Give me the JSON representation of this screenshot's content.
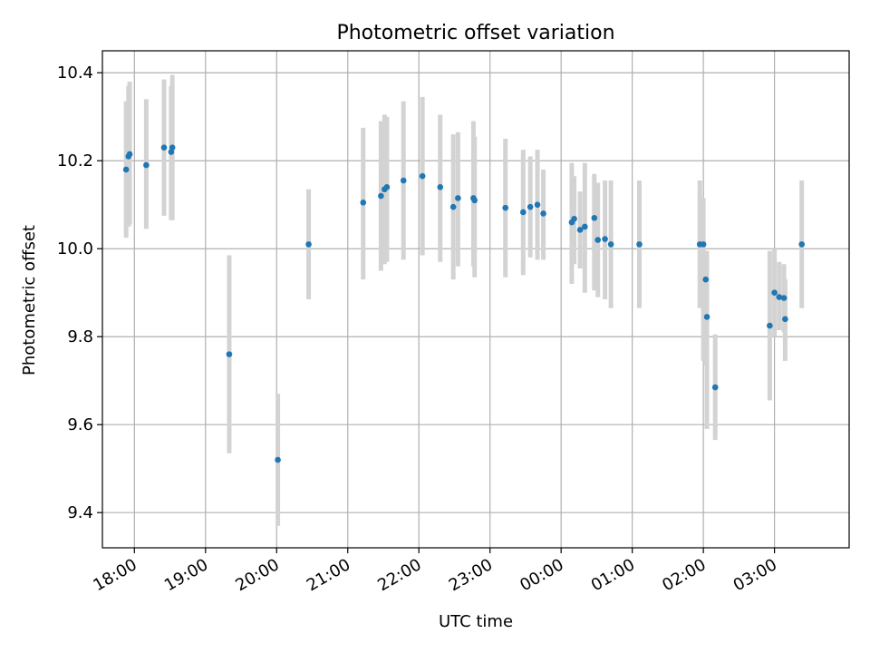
{
  "chart_data": {
    "type": "scatter",
    "title": "Photometric offset variation",
    "xlabel": "UTC time",
    "ylabel": "Photometric offset",
    "x_tick_labels": [
      "18:00",
      "19:00",
      "20:00",
      "21:00",
      "22:00",
      "23:00",
      "00:00",
      "01:00",
      "02:00",
      "03:00"
    ],
    "y_tick_labels": [
      "9.4",
      "9.6",
      "9.8",
      "10.0",
      "10.2",
      "10.4"
    ],
    "x_ticks_hours": [
      18,
      19,
      20,
      21,
      22,
      23,
      24,
      25,
      26,
      27
    ],
    "y_ticks": [
      9.4,
      9.6,
      9.8,
      10.0,
      10.2,
      10.4
    ],
    "xlim_hours": [
      17.55,
      28.05
    ],
    "ylim": [
      9.32,
      10.45
    ],
    "grid": true,
    "colors": {
      "point": "#1f77b4",
      "errorbar": "#d3d3d3",
      "grid": "#b0b0b0"
    },
    "series": [
      {
        "x_utc": [
          "17:53",
          "17:55",
          "17:56",
          "18:10",
          "18:25",
          "18:31",
          "18:32",
          "19:20",
          "20:01",
          "20:27",
          "21:13",
          "21:28",
          "21:31",
          "21:33",
          "21:47",
          "22:03",
          "22:18",
          "22:29",
          "22:33",
          "22:46",
          "22:47",
          "23:13",
          "23:28",
          "23:34",
          "23:40",
          "23:45",
          "00:09",
          "00:11",
          "00:16",
          "00:20",
          "00:28",
          "00:31",
          "00:37",
          "00:42",
          "01:06",
          "01:57",
          "02:00",
          "02:02",
          "02:03",
          "02:10",
          "02:56",
          "03:00",
          "03:04",
          "03:08",
          "03:09",
          "03:23"
        ],
        "y": [
          10.18,
          10.21,
          10.215,
          10.19,
          10.23,
          10.22,
          10.23,
          9.76,
          9.52,
          10.01,
          10.105,
          10.12,
          10.135,
          10.14,
          10.155,
          10.165,
          10.14,
          10.095,
          10.115,
          10.115,
          10.11,
          10.093,
          10.083,
          10.095,
          10.1,
          10.08,
          10.06,
          10.068,
          10.043,
          10.05,
          10.07,
          10.02,
          10.022,
          10.01,
          10.01,
          10.01,
          10.01,
          9.93,
          9.845,
          9.685,
          9.825,
          9.9,
          9.89,
          9.888,
          9.84,
          10.01
        ],
        "yerr_low": [
          10.025,
          10.05,
          10.055,
          10.045,
          10.075,
          10.065,
          10.065,
          9.535,
          9.37,
          9.885,
          9.93,
          9.95,
          9.965,
          9.97,
          9.975,
          9.985,
          9.97,
          9.93,
          9.96,
          9.96,
          9.935,
          9.935,
          9.94,
          9.98,
          9.975,
          9.975,
          9.92,
          9.965,
          9.955,
          9.9,
          9.905,
          9.89,
          9.885,
          9.865,
          9.865,
          9.865,
          9.745,
          9.735,
          9.59,
          9.565,
          9.655,
          9.8,
          9.815,
          9.81,
          9.745,
          9.865
        ],
        "yerr_high": [
          10.335,
          10.37,
          10.38,
          10.34,
          10.385,
          10.37,
          10.395,
          9.985,
          9.67,
          10.135,
          10.275,
          10.29,
          10.305,
          10.3,
          10.335,
          10.345,
          10.305,
          10.26,
          10.265,
          10.29,
          10.255,
          10.25,
          10.225,
          10.21,
          10.225,
          10.18,
          10.195,
          10.165,
          10.13,
          10.195,
          10.17,
          10.15,
          10.155,
          10.155,
          10.155,
          10.155,
          10.115,
          9.955,
          9.995,
          9.805,
          9.995,
          10.0,
          9.97,
          9.965,
          9.93,
          10.155
        ]
      }
    ]
  }
}
